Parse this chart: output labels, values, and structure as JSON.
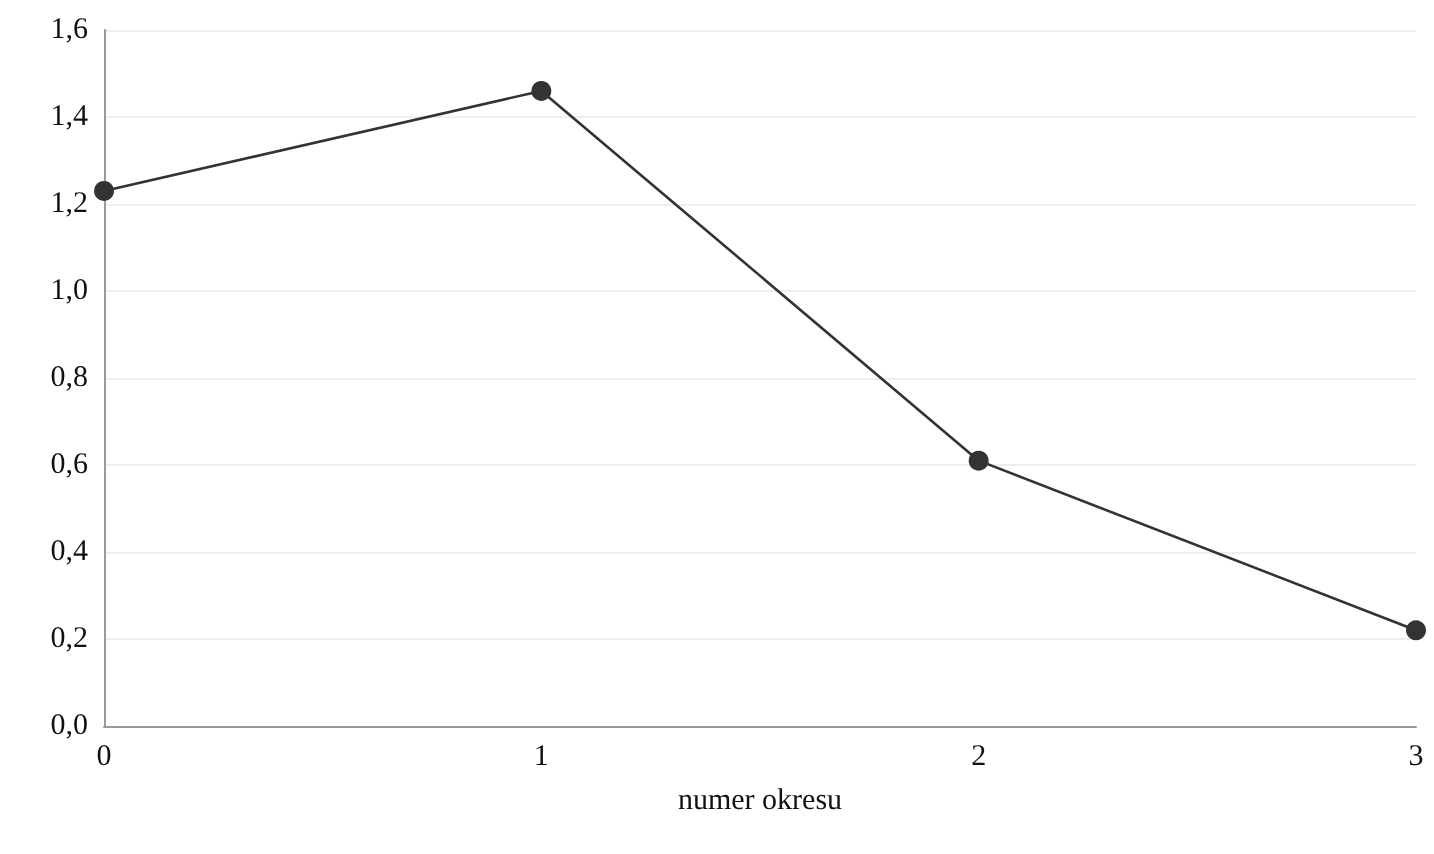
{
  "chart_data": {
    "type": "line",
    "xlabel": "numer okresu",
    "x": [
      0,
      1,
      2,
      3
    ],
    "series": [
      {
        "color": "#333333",
        "values": [
          1.23,
          1.46,
          0.61,
          0.22
        ]
      }
    ],
    "xlim": [
      0,
      3
    ],
    "xticks": [
      0,
      1,
      2,
      3
    ],
    "ylim": [
      0,
      1.6
    ],
    "yticks": [
      {
        "value": 0,
        "label": "0,0"
      },
      {
        "value": 0.2,
        "label": "0,2"
      },
      {
        "value": 0.4,
        "label": "0,4"
      },
      {
        "value": 0.6,
        "label": "0,6"
      },
      {
        "value": 0.8,
        "label": "0,8"
      },
      {
        "value": 1.0,
        "label": "1,0"
      },
      {
        "value": 1.2,
        "label": "1,2"
      },
      {
        "value": 1.4,
        "label": "1,4"
      },
      {
        "value": 1.6,
        "label": "1,6"
      }
    ],
    "grid": "y",
    "marker": "circle",
    "line_style": "solid"
  }
}
